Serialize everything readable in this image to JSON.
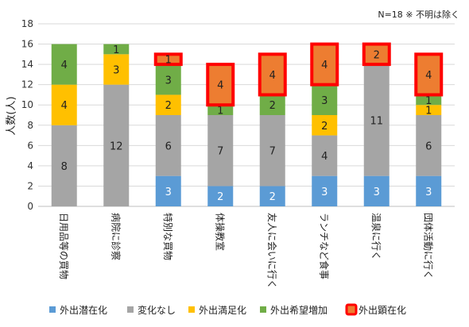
{
  "chart_data": {
    "type": "bar",
    "stacked": true,
    "note": "N=18 ※ 不明は除く",
    "ylabel": "人数(人)",
    "ylim": [
      0,
      18
    ],
    "yticks": [
      0,
      2,
      4,
      6,
      8,
      10,
      12,
      14,
      16,
      18
    ],
    "grid": true,
    "legend_position": "bottom",
    "categories": [
      "日用品等の買物",
      "病院に診察",
      "特別な買物",
      "体操教室",
      "友人に会いに行く",
      "ランチなど食事",
      "温泉に行く",
      "団体活動に行く"
    ],
    "series": [
      {
        "name": "外出潜在化",
        "color": "#5b9bd5",
        "values": [
          0,
          0,
          3,
          2,
          2,
          3,
          3,
          3
        ]
      },
      {
        "name": "変化なし",
        "color": "#a5a5a5",
        "values": [
          8,
          12,
          6,
          7,
          7,
          4,
          11,
          6
        ]
      },
      {
        "name": "外出満足化",
        "color": "#ffc000",
        "values": [
          4,
          3,
          2,
          0,
          0,
          2,
          0,
          1
        ]
      },
      {
        "name": "外出希望増加",
        "color": "#70ad47",
        "values": [
          4,
          1,
          3,
          1,
          2,
          3,
          0,
          1
        ]
      },
      {
        "name": "外出顕在化",
        "color": "#ed7d31",
        "border": "#ff0000",
        "values": [
          0,
          0,
          1,
          4,
          4,
          4,
          2,
          4
        ]
      }
    ]
  }
}
